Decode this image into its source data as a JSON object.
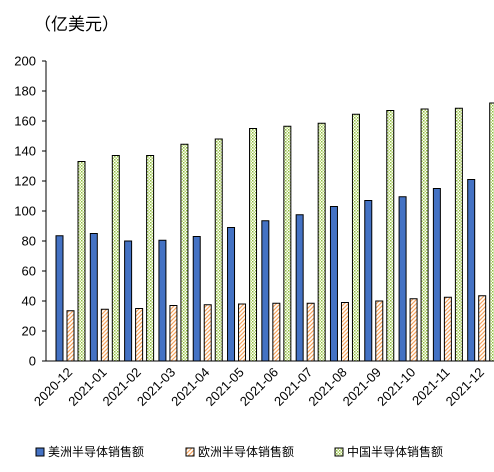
{
  "chart_data": {
    "type": "bar",
    "unit_label": "（亿美元）",
    "categories": [
      "2020-12",
      "2021-01",
      "2021-02",
      "2021-03",
      "2021-04",
      "2021-05",
      "2021-06",
      "2021-07",
      "2021-08",
      "2021-09",
      "2021-10",
      "2021-11",
      "2021-12"
    ],
    "series": [
      {
        "name": "美洲半导体销售额",
        "values": [
          83.5,
          85,
          80,
          80.5,
          83,
          89,
          93.5,
          97.5,
          103,
          107,
          109.5,
          115,
          121
        ],
        "color": "#4472c4",
        "pattern": "solid"
      },
      {
        "name": "欧洲半导体销售额",
        "values": [
          33.5,
          34.5,
          35,
          37,
          37.5,
          38,
          38.5,
          38.5,
          39,
          40,
          41.5,
          42.5,
          43.5
        ],
        "color": "#f4a460",
        "pattern": "diagonal"
      },
      {
        "name": "中国半导体销售额",
        "values": [
          133,
          137,
          137,
          144.5,
          148,
          155,
          156.5,
          158.5,
          164.5,
          167,
          168,
          168.5,
          172
        ],
        "color": "#9acd32",
        "pattern": "dots"
      }
    ],
    "ylim": [
      0,
      200
    ],
    "yticks": [
      "0",
      "20",
      "40",
      "60",
      "80",
      "100",
      "120",
      "140",
      "160",
      "180",
      "200"
    ],
    "legend_position": "bottom",
    "grid": false
  }
}
